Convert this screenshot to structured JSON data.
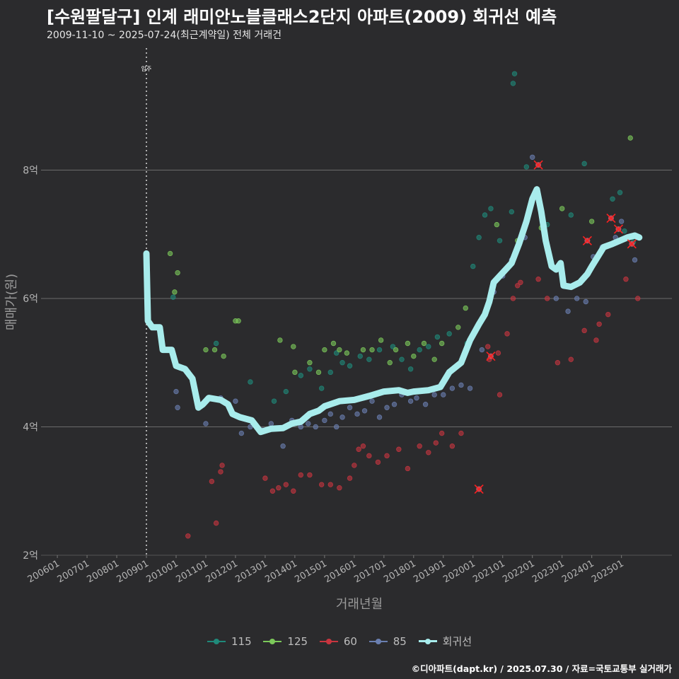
{
  "header": {
    "title": "[수원팔달구] 인계 래미안노블클래스2단지 아파트(2009) 회귀선 예측",
    "subtitle": "2009-11-10 ~ 2025-07-24(최근계약일) 전체 거래건"
  },
  "footer": {
    "source": "©디아파트(dapt.kr) / 2025.07.30 / 자료=국토교통부 실거래가"
  },
  "colors": {
    "background": "#2b2b2d",
    "grid": "#6b6b6b",
    "s115": "#1f8a7a",
    "s125": "#7cc95a",
    "s60": "#c8353f",
    "s85": "#6a7fb0",
    "regression": "#a8ecec",
    "marker_x": "#ff2020"
  },
  "chart_data": {
    "type": "scatter",
    "title": "[수원팔달구] 인계 래미안노블클래스2단지 아파트(2009) 회귀선 예측",
    "subtitle": "2009-11-10 ~ 2025-07-24(최근계약일) 전체 거래건",
    "xlabel": "거래년월",
    "ylabel": "매매가(원)",
    "xlim": [
      2005.45,
      2026.7
    ],
    "ylim": [
      2.0,
      9.9
    ],
    "x_ticks": [
      {
        "v": 2006.0,
        "label": "200601"
      },
      {
        "v": 2007.0,
        "label": "200701"
      },
      {
        "v": 2008.0,
        "label": "200801"
      },
      {
        "v": 2009.0,
        "label": "200901"
      },
      {
        "v": 2010.0,
        "label": "201001"
      },
      {
        "v": 2011.0,
        "label": "201101"
      },
      {
        "v": 2012.0,
        "label": "201201"
      },
      {
        "v": 2013.0,
        "label": "201301"
      },
      {
        "v": 2014.0,
        "label": "201401"
      },
      {
        "v": 2015.0,
        "label": "201501"
      },
      {
        "v": 2016.0,
        "label": "201601"
      },
      {
        "v": 2017.0,
        "label": "201701"
      },
      {
        "v": 2018.0,
        "label": "201801"
      },
      {
        "v": 2019.0,
        "label": "201901"
      },
      {
        "v": 2020.0,
        "label": "202001"
      },
      {
        "v": 2021.0,
        "label": "202101"
      },
      {
        "v": 2022.0,
        "label": "202201"
      },
      {
        "v": 2023.0,
        "label": "202301"
      },
      {
        "v": 2024.0,
        "label": "202401"
      },
      {
        "v": 2025.0,
        "label": "202501"
      }
    ],
    "y_ticks": [
      {
        "v": 2,
        "label": "2억"
      },
      {
        "v": 4,
        "label": "4억"
      },
      {
        "v": 6,
        "label": "6억"
      },
      {
        "v": 8,
        "label": "8억"
      }
    ],
    "annotation": {
      "x": 2009.0,
      "label": "입주"
    },
    "legend": [
      "115",
      "125",
      "60",
      "85",
      "회귀선"
    ],
    "series": [
      {
        "name": "115",
        "color_key": "s115",
        "points": [
          [
            2009.9,
            6.02
          ],
          [
            2011.35,
            5.3
          ],
          [
            2012.5,
            4.7
          ],
          [
            2013.3,
            4.4
          ],
          [
            2013.7,
            4.55
          ],
          [
            2014.2,
            4.8
          ],
          [
            2014.5,
            4.9
          ],
          [
            2014.9,
            4.6
          ],
          [
            2015.2,
            4.85
          ],
          [
            2015.4,
            5.15
          ],
          [
            2015.6,
            5.0
          ],
          [
            2015.85,
            4.95
          ],
          [
            2016.2,
            5.1
          ],
          [
            2016.5,
            5.05
          ],
          [
            2016.85,
            5.2
          ],
          [
            2017.3,
            5.25
          ],
          [
            2017.6,
            5.05
          ],
          [
            2017.9,
            4.9
          ],
          [
            2018.2,
            5.2
          ],
          [
            2018.5,
            5.25
          ],
          [
            2018.8,
            5.4
          ],
          [
            2019.2,
            5.45
          ],
          [
            2019.8,
            5.3
          ],
          [
            2020.0,
            6.5
          ],
          [
            2020.2,
            6.95
          ],
          [
            2020.4,
            7.3
          ],
          [
            2020.6,
            7.4
          ],
          [
            2020.9,
            6.9
          ],
          [
            2021.3,
            7.35
          ],
          [
            2021.35,
            9.35
          ],
          [
            2021.4,
            9.5
          ],
          [
            2021.8,
            8.05
          ],
          [
            2022.5,
            7.15
          ],
          [
            2023.3,
            7.3
          ],
          [
            2023.75,
            8.1
          ],
          [
            2024.7,
            7.55
          ],
          [
            2024.95,
            7.65
          ],
          [
            2025.1,
            7.05
          ],
          [
            2025.4,
            6.88
          ]
        ]
      },
      {
        "name": "125",
        "color_key": "s125",
        "points": [
          [
            2009.8,
            6.7
          ],
          [
            2009.95,
            6.1
          ],
          [
            2010.05,
            6.4
          ],
          [
            2011.0,
            5.2
          ],
          [
            2011.3,
            5.2
          ],
          [
            2011.6,
            5.1
          ],
          [
            2012.0,
            5.65
          ],
          [
            2012.1,
            5.65
          ],
          [
            2013.5,
            5.35
          ],
          [
            2013.95,
            5.25
          ],
          [
            2014.0,
            4.85
          ],
          [
            2014.5,
            5.0
          ],
          [
            2014.8,
            4.85
          ],
          [
            2015.0,
            5.2
          ],
          [
            2015.3,
            5.3
          ],
          [
            2015.5,
            5.2
          ],
          [
            2015.75,
            5.15
          ],
          [
            2016.3,
            5.2
          ],
          [
            2016.6,
            5.2
          ],
          [
            2016.9,
            5.35
          ],
          [
            2017.2,
            5.0
          ],
          [
            2017.4,
            5.2
          ],
          [
            2017.8,
            5.3
          ],
          [
            2018.0,
            5.1
          ],
          [
            2018.35,
            5.3
          ],
          [
            2018.7,
            5.05
          ],
          [
            2018.95,
            5.3
          ],
          [
            2019.5,
            5.55
          ],
          [
            2019.75,
            5.85
          ],
          [
            2020.8,
            7.15
          ],
          [
            2021.5,
            6.9
          ],
          [
            2022.3,
            7.1
          ],
          [
            2023.0,
            7.4
          ],
          [
            2024.0,
            7.2
          ],
          [
            2025.3,
            8.5
          ]
        ]
      },
      {
        "name": "60",
        "color_key": "s60",
        "points": [
          [
            2010.4,
            2.3
          ],
          [
            2011.2,
            3.15
          ],
          [
            2011.35,
            2.5
          ],
          [
            2011.5,
            3.3
          ],
          [
            2011.55,
            3.4
          ],
          [
            2013.0,
            3.2
          ],
          [
            2013.25,
            3.0
          ],
          [
            2013.45,
            3.05
          ],
          [
            2013.7,
            3.1
          ],
          [
            2013.95,
            3.0
          ],
          [
            2014.2,
            3.25
          ],
          [
            2014.5,
            3.25
          ],
          [
            2014.9,
            3.1
          ],
          [
            2015.2,
            3.1
          ],
          [
            2015.5,
            3.05
          ],
          [
            2015.85,
            3.2
          ],
          [
            2016.0,
            3.4
          ],
          [
            2016.15,
            3.65
          ],
          [
            2016.3,
            3.7
          ],
          [
            2016.5,
            3.55
          ],
          [
            2016.8,
            3.45
          ],
          [
            2017.1,
            3.55
          ],
          [
            2017.5,
            3.65
          ],
          [
            2017.8,
            3.35
          ],
          [
            2018.2,
            3.7
          ],
          [
            2018.5,
            3.6
          ],
          [
            2018.75,
            3.75
          ],
          [
            2018.95,
            3.9
          ],
          [
            2019.3,
            3.7
          ],
          [
            2019.6,
            3.9
          ],
          [
            2020.5,
            5.25
          ],
          [
            2020.55,
            5.05
          ],
          [
            2021.15,
            5.45
          ],
          [
            2020.85,
            5.15
          ],
          [
            2020.9,
            4.5
          ],
          [
            2021.35,
            6.0
          ],
          [
            2021.5,
            6.2
          ],
          [
            2021.6,
            6.25
          ],
          [
            2022.2,
            6.3
          ],
          [
            2022.5,
            6.0
          ],
          [
            2022.85,
            5.0
          ],
          [
            2023.3,
            5.05
          ],
          [
            2023.75,
            5.5
          ],
          [
            2024.15,
            5.35
          ],
          [
            2024.25,
            5.6
          ],
          [
            2024.55,
            5.75
          ],
          [
            2025.15,
            6.3
          ],
          [
            2025.55,
            6.0
          ]
        ]
      },
      {
        "name": "85",
        "color_key": "s85",
        "points": [
          [
            2010.0,
            4.55
          ],
          [
            2010.05,
            4.3
          ],
          [
            2011.0,
            4.05
          ],
          [
            2011.5,
            4.45
          ],
          [
            2012.0,
            4.4
          ],
          [
            2012.2,
            3.9
          ],
          [
            2012.5,
            4.0
          ],
          [
            2012.9,
            3.95
          ],
          [
            2013.2,
            4.05
          ],
          [
            2013.6,
            3.7
          ],
          [
            2013.9,
            4.1
          ],
          [
            2014.2,
            4.0
          ],
          [
            2014.45,
            4.05
          ],
          [
            2014.7,
            4.0
          ],
          [
            2015.0,
            4.1
          ],
          [
            2015.2,
            4.2
          ],
          [
            2015.4,
            4.0
          ],
          [
            2015.6,
            4.15
          ],
          [
            2015.85,
            4.3
          ],
          [
            2016.1,
            4.2
          ],
          [
            2016.35,
            4.25
          ],
          [
            2016.6,
            4.4
          ],
          [
            2016.85,
            4.15
          ],
          [
            2017.1,
            4.3
          ],
          [
            2017.35,
            4.35
          ],
          [
            2017.6,
            4.5
          ],
          [
            2017.9,
            4.4
          ],
          [
            2018.1,
            4.45
          ],
          [
            2018.4,
            4.35
          ],
          [
            2018.7,
            4.5
          ],
          [
            2019.0,
            4.5
          ],
          [
            2019.3,
            4.6
          ],
          [
            2019.6,
            4.65
          ],
          [
            2019.9,
            4.6
          ],
          [
            2020.3,
            5.2
          ],
          [
            2020.7,
            6.1
          ],
          [
            2021.0,
            6.35
          ],
          [
            2021.3,
            6.6
          ],
          [
            2021.75,
            6.95
          ],
          [
            2022.0,
            8.2
          ],
          [
            2022.8,
            6.0
          ],
          [
            2023.2,
            5.8
          ],
          [
            2023.5,
            6.0
          ],
          [
            2023.8,
            5.95
          ],
          [
            2024.05,
            6.65
          ],
          [
            2024.35,
            6.8
          ],
          [
            2024.8,
            6.95
          ],
          [
            2025.0,
            7.2
          ],
          [
            2025.45,
            6.6
          ]
        ]
      }
    ],
    "highlighted_points": [
      [
        2020.2,
        3.03
      ],
      [
        2020.6,
        5.1
      ],
      [
        2022.2,
        8.08
      ],
      [
        2023.85,
        6.9
      ],
      [
        2024.65,
        7.25
      ],
      [
        2024.9,
        7.08
      ],
      [
        2025.35,
        6.85
      ]
    ],
    "regression": {
      "name": "회귀선",
      "points": [
        [
          2009.0,
          6.7
        ],
        [
          2009.05,
          5.65
        ],
        [
          2009.2,
          5.55
        ],
        [
          2009.45,
          5.55
        ],
        [
          2009.55,
          5.2
        ],
        [
          2009.85,
          5.2
        ],
        [
          2010.0,
          4.95
        ],
        [
          2010.3,
          4.9
        ],
        [
          2010.55,
          4.75
        ],
        [
          2010.75,
          4.3
        ],
        [
          2010.9,
          4.35
        ],
        [
          2011.1,
          4.45
        ],
        [
          2011.5,
          4.42
        ],
        [
          2011.75,
          4.35
        ],
        [
          2011.9,
          4.2
        ],
        [
          2012.15,
          4.15
        ],
        [
          2012.55,
          4.1
        ],
        [
          2012.85,
          3.92
        ],
        [
          2013.2,
          3.97
        ],
        [
          2013.6,
          3.98
        ],
        [
          2013.9,
          4.05
        ],
        [
          2014.2,
          4.08
        ],
        [
          2014.5,
          4.2
        ],
        [
          2014.8,
          4.25
        ],
        [
          2015.0,
          4.32
        ],
        [
          2015.5,
          4.4
        ],
        [
          2016.0,
          4.42
        ],
        [
          2016.5,
          4.48
        ],
        [
          2017.0,
          4.55
        ],
        [
          2017.5,
          4.57
        ],
        [
          2017.8,
          4.53
        ],
        [
          2018.0,
          4.55
        ],
        [
          2018.5,
          4.57
        ],
        [
          2018.9,
          4.62
        ],
        [
          2019.2,
          4.85
        ],
        [
          2019.6,
          5.0
        ],
        [
          2019.9,
          5.35
        ],
        [
          2020.2,
          5.6
        ],
        [
          2020.4,
          5.75
        ],
        [
          2020.55,
          5.95
        ],
        [
          2020.7,
          6.25
        ],
        [
          2021.0,
          6.4
        ],
        [
          2021.3,
          6.55
        ],
        [
          2021.55,
          6.85
        ],
        [
          2021.8,
          7.2
        ],
        [
          2022.0,
          7.55
        ],
        [
          2022.15,
          7.7
        ],
        [
          2022.3,
          7.35
        ],
        [
          2022.45,
          6.9
        ],
        [
          2022.65,
          6.5
        ],
        [
          2022.8,
          6.45
        ],
        [
          2022.95,
          6.55
        ],
        [
          2023.05,
          6.2
        ],
        [
          2023.3,
          6.18
        ],
        [
          2023.6,
          6.25
        ],
        [
          2023.85,
          6.38
        ],
        [
          2024.0,
          6.5
        ],
        [
          2024.2,
          6.65
        ],
        [
          2024.4,
          6.8
        ],
        [
          2024.7,
          6.85
        ],
        [
          2024.95,
          6.9
        ],
        [
          2025.2,
          6.95
        ],
        [
          2025.45,
          6.98
        ],
        [
          2025.6,
          6.95
        ]
      ]
    }
  }
}
